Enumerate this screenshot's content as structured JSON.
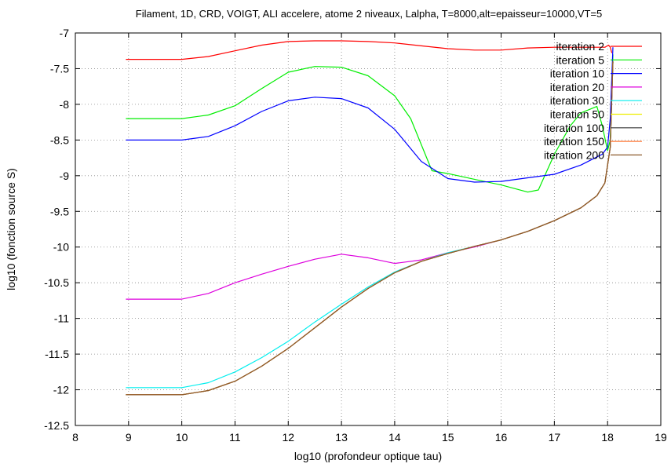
{
  "chart_data": {
    "type": "line",
    "title": "Filament, 1D, CRD, VOIGT, ALI accelere, atome 2 niveaux, Lalpha, T=8000,alt=epaisseur=10000,VT=5",
    "xlabel": "log10 (profondeur optique tau)",
    "ylabel": "log10 (fonction source S)",
    "xlim": [
      8,
      19
    ],
    "ylim": [
      -12.5,
      -7
    ],
    "xticks": [
      8,
      9,
      10,
      11,
      12,
      13,
      14,
      15,
      16,
      17,
      18,
      19
    ],
    "yticks": [
      -7,
      -7.5,
      -8,
      -8.5,
      -9,
      -9.5,
      -10,
      -10.5,
      -11,
      -11.5,
      -12,
      -12.5
    ],
    "xtick_labels": [
      "8",
      "9",
      "10",
      "11",
      "12",
      "13",
      "14",
      "15",
      "16",
      "17",
      "18",
      "19"
    ],
    "ytick_labels": [
      "-7",
      "-7.5",
      "-8",
      "-8.5",
      "-9",
      "-9.5",
      "-10",
      "-10.5",
      "-11",
      "-11.5",
      "-12",
      "-12.5"
    ],
    "grid": true,
    "legend_position": "top-right",
    "series": [
      {
        "name": "iteration 2",
        "color": "#ff0000",
        "x": [
          8.95,
          10.0,
          10.5,
          11.0,
          11.5,
          12.0,
          12.5,
          13.0,
          13.5,
          14.0,
          14.5,
          15.0,
          15.5,
          16.0,
          16.5,
          17.0,
          17.5,
          17.95,
          18.02,
          18.05,
          18.08
        ],
        "y": [
          -7.37,
          -7.37,
          -7.33,
          -7.25,
          -7.17,
          -7.12,
          -7.11,
          -7.11,
          -7.12,
          -7.14,
          -7.18,
          -7.22,
          -7.24,
          -7.24,
          -7.21,
          -7.2,
          -7.2,
          -7.2,
          -7.17,
          -7.2,
          -7.28
        ]
      },
      {
        "name": "iteration 5",
        "color": "#00ee00",
        "x": [
          8.95,
          10.0,
          10.5,
          11.0,
          11.5,
          12.0,
          12.5,
          13.0,
          13.5,
          14.0,
          14.3,
          14.7,
          15.0,
          15.5,
          16.0,
          16.5,
          16.7,
          17.0,
          17.3,
          17.5,
          17.8,
          17.9,
          18.0,
          18.05,
          18.1
        ],
        "y": [
          -8.2,
          -8.2,
          -8.15,
          -8.02,
          -7.78,
          -7.55,
          -7.47,
          -7.48,
          -7.6,
          -7.88,
          -8.2,
          -8.93,
          -8.97,
          -9.05,
          -9.13,
          -9.23,
          -9.2,
          -8.7,
          -8.3,
          -8.12,
          -8.03,
          -8.3,
          -8.65,
          -8.5,
          -7.3
        ]
      },
      {
        "name": "iteration 10",
        "color": "#0000ff",
        "x": [
          8.95,
          10.0,
          10.5,
          11.0,
          11.5,
          12.0,
          12.5,
          13.0,
          13.5,
          14.0,
          14.5,
          15.0,
          15.5,
          16.0,
          16.5,
          17.0,
          17.5,
          17.9,
          18.0,
          18.05,
          18.1
        ],
        "y": [
          -8.5,
          -8.5,
          -8.45,
          -8.3,
          -8.1,
          -7.95,
          -7.9,
          -7.92,
          -8.05,
          -8.35,
          -8.8,
          -9.04,
          -9.09,
          -9.08,
          -9.03,
          -8.98,
          -8.85,
          -8.7,
          -8.6,
          -8.2,
          -7.2
        ]
      },
      {
        "name": "iteration 20",
        "color": "#dd00dd",
        "x": [
          8.95,
          10.0,
          10.5,
          11.0,
          11.5,
          12.0,
          12.5,
          13.0,
          13.5,
          14.0,
          14.5,
          15.0,
          15.5,
          16.0,
          16.5,
          17.0,
          17.5,
          17.8,
          17.95,
          18.05,
          18.1
        ],
        "y": [
          -10.73,
          -10.73,
          -10.65,
          -10.5,
          -10.38,
          -10.27,
          -10.17,
          -10.1,
          -10.15,
          -10.23,
          -10.18,
          -10.08,
          -10.0,
          -9.9,
          -9.78,
          -9.63,
          -9.45,
          -9.28,
          -9.1,
          -8.6,
          -7.4
        ]
      },
      {
        "name": "iteration 30",
        "color": "#00eeee",
        "x": [
          8.95,
          10.0,
          10.5,
          11.0,
          11.5,
          12.0,
          12.5,
          13.0,
          13.5,
          14.0,
          14.5,
          15.0,
          15.5,
          16.0,
          16.5,
          17.0,
          17.5,
          17.8,
          17.95,
          18.05,
          18.1
        ],
        "y": [
          -11.97,
          -11.97,
          -11.9,
          -11.75,
          -11.55,
          -11.32,
          -11.05,
          -10.8,
          -10.56,
          -10.35,
          -10.2,
          -10.08,
          -9.99,
          -9.9,
          -9.78,
          -9.63,
          -9.45,
          -9.28,
          -9.1,
          -8.6,
          -7.4
        ]
      },
      {
        "name": "iteration 50",
        "color": "#eeee00",
        "x": [
          8.95,
          10.0,
          10.5,
          11.0,
          11.5,
          12.0,
          12.5,
          13.0,
          13.5,
          14.0,
          14.5,
          15.0,
          15.5,
          16.0,
          16.5,
          17.0,
          17.5,
          17.8,
          17.95,
          18.05,
          18.1
        ],
        "y": [
          -12.07,
          -12.07,
          -12.01,
          -11.88,
          -11.67,
          -11.42,
          -11.13,
          -10.84,
          -10.58,
          -10.36,
          -10.2,
          -10.09,
          -9.99,
          -9.9,
          -9.78,
          -9.63,
          -9.45,
          -9.28,
          -9.1,
          -8.6,
          -7.4
        ]
      },
      {
        "name": "iteration 100",
        "color": "#333333",
        "x": [
          8.95,
          10.0,
          10.5,
          11.0,
          11.5,
          12.0,
          12.5,
          13.0,
          13.5,
          14.0,
          14.5,
          15.0,
          15.5,
          16.0,
          16.5,
          17.0,
          17.5,
          17.8,
          17.95,
          18.05,
          18.1
        ],
        "y": [
          -12.07,
          -12.07,
          -12.01,
          -11.88,
          -11.67,
          -11.42,
          -11.13,
          -10.84,
          -10.58,
          -10.36,
          -10.2,
          -10.09,
          -9.99,
          -9.9,
          -9.78,
          -9.63,
          -9.45,
          -9.28,
          -9.1,
          -8.6,
          -7.4
        ]
      },
      {
        "name": "iteration 150",
        "color": "#ff7733",
        "x": [
          8.95,
          10.0,
          10.5,
          11.0,
          11.5,
          12.0,
          12.5,
          13.0,
          13.5,
          14.0,
          14.5,
          15.0,
          15.5,
          16.0,
          16.5,
          17.0,
          17.5,
          17.8,
          17.95,
          18.05,
          18.1
        ],
        "y": [
          -12.07,
          -12.07,
          -12.01,
          -11.88,
          -11.67,
          -11.42,
          -11.13,
          -10.84,
          -10.58,
          -10.36,
          -10.2,
          -10.09,
          -9.99,
          -9.9,
          -9.78,
          -9.63,
          -9.45,
          -9.28,
          -9.1,
          -8.6,
          -7.4
        ]
      },
      {
        "name": "iteration 200",
        "color": "#8b5a2b",
        "x": [
          8.95,
          10.0,
          10.5,
          11.0,
          11.5,
          12.0,
          12.5,
          13.0,
          13.5,
          14.0,
          14.5,
          15.0,
          15.5,
          16.0,
          16.5,
          17.0,
          17.5,
          17.8,
          17.95,
          18.05,
          18.1
        ],
        "y": [
          -12.07,
          -12.07,
          -12.01,
          -11.88,
          -11.67,
          -11.42,
          -11.13,
          -10.84,
          -10.58,
          -10.36,
          -10.2,
          -10.09,
          -9.99,
          -9.9,
          -9.78,
          -9.63,
          -9.45,
          -9.28,
          -9.1,
          -8.6,
          -7.4
        ]
      }
    ]
  }
}
